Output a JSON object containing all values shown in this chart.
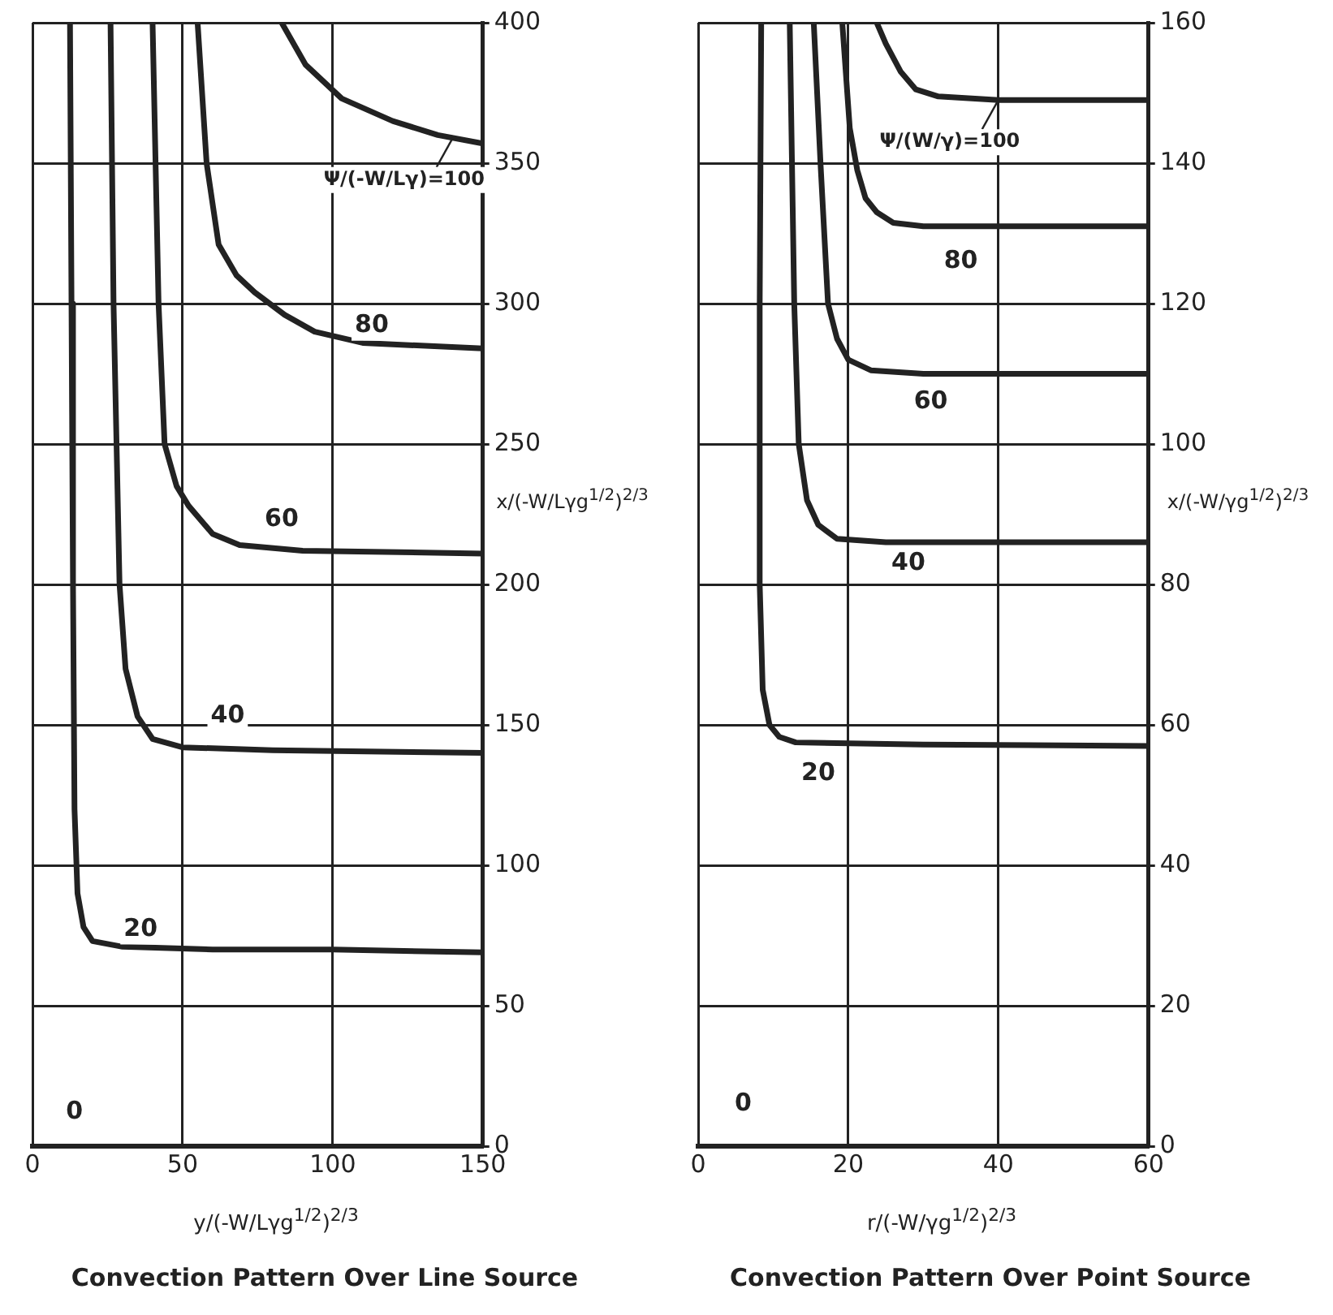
{
  "chart_data": [
    {
      "type": "line",
      "title": "Convection Pattern Over Line Source",
      "xlabel": "y/(-W/Lγg$^{1/2}$)$^{2/3}$",
      "ylabel": "x/(-W/Lγg$^{1/2}$)$^{2/3}$",
      "xlim": [
        0,
        150
      ],
      "xticks": [
        0,
        50,
        100,
        150
      ],
      "ylim": [
        0,
        400
      ],
      "yticks": [
        0,
        50,
        100,
        150,
        200,
        250,
        300,
        350,
        400
      ],
      "grid": true,
      "legend": false,
      "marker": "none",
      "line_style": "solid",
      "series": [
        {
          "color": "#222222",
          "x": [
            12.5,
            13,
            13.5,
            14,
            15,
            17,
            20,
            30,
            60,
            100,
            150
          ],
          "values": [
            400,
            300,
            200,
            120,
            90,
            78,
            73,
            71,
            70,
            70,
            69
          ]
        },
        {
          "color": "#222222",
          "x": [
            26,
            27,
            28,
            29,
            31,
            35,
            40,
            50,
            80,
            150
          ],
          "values": [
            400,
            300,
            250,
            200,
            170,
            153,
            145,
            142,
            141,
            140
          ]
        },
        {
          "color": "#222222",
          "x": [
            40,
            42,
            44,
            48,
            52,
            60,
            69,
            90,
            150
          ],
          "values": [
            400,
            300,
            250,
            235,
            228,
            218,
            214,
            212,
            211
          ]
        },
        {
          "color": "#222222",
          "x": [
            55,
            58,
            62,
            68,
            74,
            84,
            94,
            110,
            150
          ],
          "values": [
            400,
            350,
            321,
            310,
            304,
            296,
            290,
            286,
            284
          ]
        },
        {
          "color": "#222222",
          "x": [
            83,
            91,
            103,
            120,
            135,
            150
          ],
          "values": [
            400,
            385,
            373,
            365,
            360,
            357
          ]
        }
      ],
      "annotations": [
        {
          "text": "20",
          "x": 36,
          "y": 77
        },
        {
          "text": "40",
          "x": 65,
          "y": 153
        },
        {
          "text": "60",
          "x": 83,
          "y": 223
        },
        {
          "text": "80",
          "x": 113,
          "y": 292
        },
        {
          "text": "Ψ/(-W/Lγ)=100",
          "x": 140,
          "y": 359
        },
        {
          "text": "0",
          "x": 14,
          "y": 12
        }
      ]
    },
    {
      "type": "line",
      "title": "Convection Pattern Over Point Source",
      "xlabel": "r/(-W/γg$^{1/2}$)$^{2/3}$",
      "ylabel": "x/(-W/γg$^{1/2}$)$^{2/3}$",
      "xlim": [
        0,
        60
      ],
      "xticks": [
        0,
        20,
        40,
        60
      ],
      "ylim": [
        0,
        160
      ],
      "yticks": [
        0,
        20,
        40,
        60,
        80,
        100,
        120,
        140,
        160
      ],
      "grid": true,
      "legend": false,
      "marker": "none",
      "line_style": "solid",
      "series": [
        {
          "color": "#222222",
          "x": [
            8.4,
            8.2,
            8.2,
            8.6,
            9.5,
            10.8,
            13,
            30,
            60
          ],
          "values": [
            160,
            120,
            80,
            65,
            60,
            58.3,
            57.5,
            57.2,
            57
          ]
        },
        {
          "color": "#222222",
          "x": [
            12.2,
            12.8,
            13.4,
            14.5,
            16,
            18.5,
            25,
            60
          ],
          "values": [
            160,
            120,
            100,
            92,
            88.5,
            86.5,
            86,
            86
          ]
        },
        {
          "color": "#222222",
          "x": [
            15.4,
            16.3,
            17.3,
            18.5,
            20,
            23,
            30,
            60
          ],
          "values": [
            160,
            140,
            120,
            115,
            112,
            110.5,
            110,
            110
          ]
        },
        {
          "color": "#222222",
          "x": [
            19.2,
            20.2,
            21.2,
            22.3,
            23.8,
            26,
            30,
            60
          ],
          "values": [
            160,
            145,
            139,
            135,
            133,
            131.5,
            131,
            131
          ]
        },
        {
          "color": "#222222",
          "x": [
            23.8,
            25,
            27,
            29,
            32,
            40,
            60
          ],
          "values": [
            160,
            157,
            153,
            150.5,
            149.5,
            149,
            149
          ]
        }
      ],
      "annotations": [
        {
          "text": "20",
          "x": 16,
          "y": 53
        },
        {
          "text": "40",
          "x": 28,
          "y": 83
        },
        {
          "text": "60",
          "x": 31,
          "y": 106
        },
        {
          "text": "80",
          "x": 35,
          "y": 126
        },
        {
          "text": "Ψ/(W/γ)=100",
          "x": 40,
          "y": 149
        },
        {
          "text": "0",
          "x": 6,
          "y": 6
        }
      ]
    }
  ]
}
